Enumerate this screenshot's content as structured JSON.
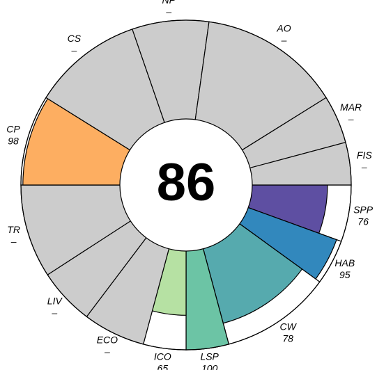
{
  "chart_data": {
    "type": "flower",
    "center_value": 86,
    "categories": [
      "SPP",
      "HAB",
      "CW",
      "LSP",
      "ICO",
      "ECO",
      "LIV",
      "TR",
      "CP",
      "CS",
      "NP",
      "AO",
      "MAR",
      "FIS"
    ],
    "values": [
      76,
      95,
      78,
      100,
      65,
      null,
      null,
      null,
      98,
      null,
      null,
      null,
      null,
      null
    ],
    "value_labels": [
      "76",
      "95",
      "78",
      "100",
      "65",
      "–",
      "–",
      "–",
      "98",
      "–",
      "–",
      "–",
      "–",
      "–"
    ],
    "colors": [
      "#5e4fa2",
      "#3288bd",
      "#56aaae",
      "#6cc4a5",
      "#b6e1a3",
      null,
      null,
      null,
      "#fdae61",
      null,
      null,
      null,
      null,
      null
    ],
    "na_color": "#cccccc",
    "ylim": [
      0,
      100
    ]
  }
}
